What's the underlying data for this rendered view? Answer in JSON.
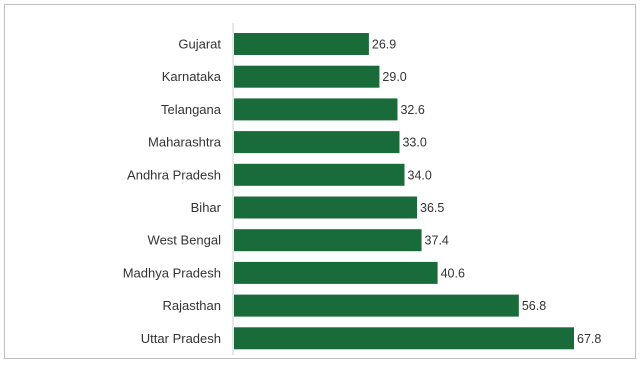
{
  "chart_data": {
    "type": "bar",
    "orientation": "horizontal",
    "categories": [
      "Gujarat",
      "Karnataka",
      "Telangana",
      "Maharashtra",
      "Andhra Pradesh",
      "Bihar",
      "West Bengal",
      "Madhya Pradesh",
      "Rajasthan",
      "Uttar Pradesh"
    ],
    "values": [
      26.9,
      29.0,
      32.6,
      33.0,
      34.0,
      36.5,
      37.4,
      40.6,
      56.8,
      67.8
    ],
    "value_labels": [
      "26.9",
      "29.0",
      "32.6",
      "33.0",
      "34.0",
      "36.5",
      "37.4",
      "40.6",
      "56.8",
      "67.8"
    ],
    "xlim": [
      0,
      67.8
    ],
    "bar_color": "#1a6b3a",
    "grid": false,
    "legend": "none"
  }
}
